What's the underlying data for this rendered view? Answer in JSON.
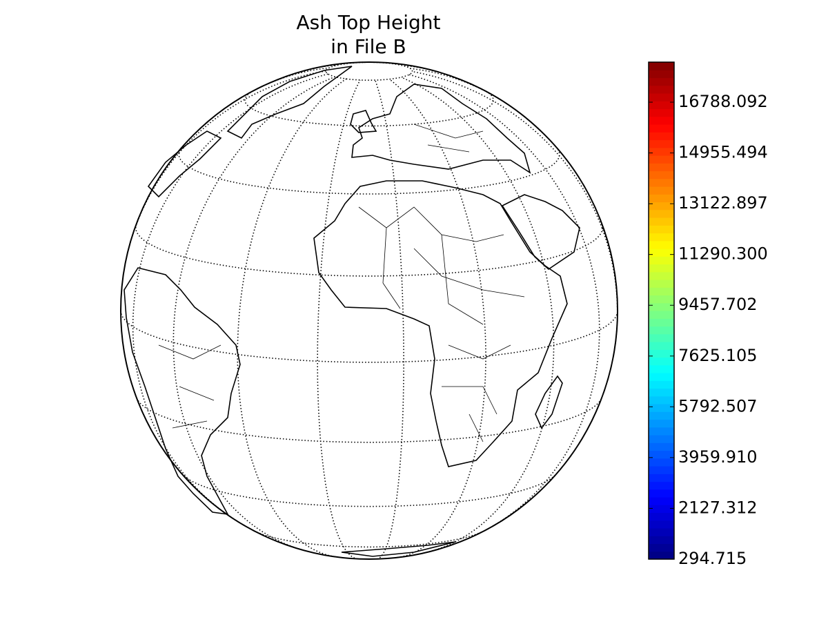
{
  "chart_data": {
    "type": "map",
    "title": [
      "Ash Top Height",
      "in File B"
    ],
    "colorbar": {
      "colormap": "jet",
      "clim": [
        294.715,
        18234
      ],
      "ticks": [
        294.715,
        2127.312,
        {
          "value": 3959.91,
          "label": "3959.910"
        },
        5792.507,
        7625.105,
        9457.702,
        {
          "value": 11290.3,
          "label": "11290.300"
        },
        13122.897,
        14955.494,
        16788.092
      ]
    },
    "graticule": true
  }
}
